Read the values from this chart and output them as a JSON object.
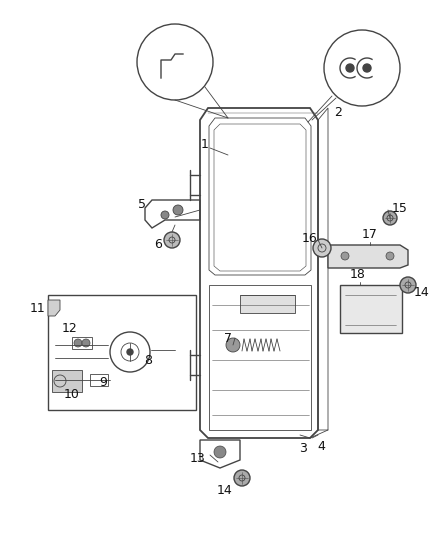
{
  "bg_color": "#ffffff",
  "line_color": "#444444",
  "label_color": "#111111",
  "fig_width": 4.38,
  "fig_height": 5.33,
  "dpi": 100
}
